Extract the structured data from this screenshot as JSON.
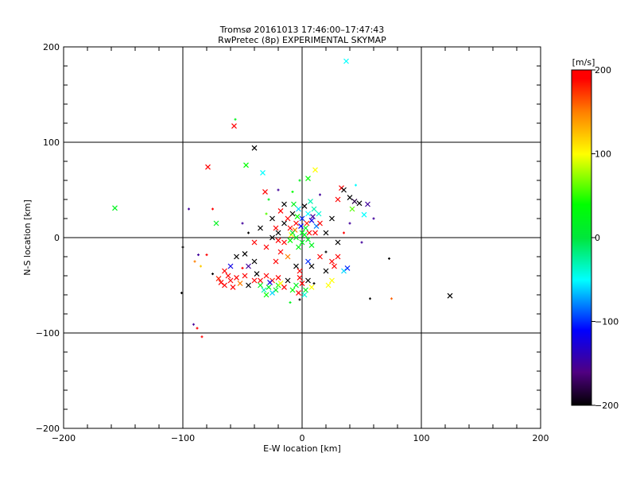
{
  "chart_data": {
    "type": "scatter",
    "title": "Tromsø 20161013 17:46:00–17:47:43",
    "subtitle": "RwPretec (8p) EXPERIMENTAL SKYMAP",
    "xlabel": "E-W location [km]",
    "ylabel": "N-S location [km]",
    "xlim": [
      -200,
      200
    ],
    "ylim": [
      -200,
      200
    ],
    "xticks": [
      "−200",
      "−100",
      "0",
      "100",
      "200"
    ],
    "yticks": [
      "−200",
      "−100",
      "0",
      "100",
      "200"
    ],
    "grid": true,
    "colorbar": {
      "label": "[m/s]",
      "range": [
        -200,
        200
      ],
      "ticks": [
        "200",
        "100",
        "0",
        "−100",
        "−200"
      ]
    },
    "point_format": [
      "x_km",
      "y_km",
      "velocity_m_s",
      "marker(1=cross,0=plus)"
    ],
    "points": [
      [
        37,
        185,
        -50,
        1
      ],
      [
        -57,
        117,
        200,
        1
      ],
      [
        -56,
        124,
        20,
        0
      ],
      [
        -79,
        74,
        200,
        1
      ],
      [
        -47,
        76,
        40,
        1
      ],
      [
        -40,
        94,
        -200,
        1
      ],
      [
        -157,
        31,
        20,
        1
      ],
      [
        -72,
        15,
        20,
        1
      ],
      [
        124,
        -61,
        -200,
        1
      ],
      [
        75,
        -64,
        160,
        0
      ],
      [
        57,
        -64,
        -200,
        0
      ],
      [
        -101,
        -58,
        -200,
        0
      ],
      [
        -91,
        -91,
        -150,
        0
      ],
      [
        -88,
        -95,
        200,
        0
      ],
      [
        -84,
        -104,
        200,
        0
      ],
      [
        73,
        -22,
        -200,
        0
      ],
      [
        -33,
        68,
        -50,
        1
      ],
      [
        -31,
        48,
        200,
        1
      ],
      [
        11,
        71,
        100,
        1
      ],
      [
        5,
        62,
        40,
        1
      ],
      [
        52,
        24,
        -50,
        1
      ],
      [
        33,
        52,
        200,
        1
      ],
      [
        35,
        50,
        -200,
        1
      ],
      [
        40,
        42,
        -200,
        1
      ],
      [
        44,
        38,
        -180,
        1
      ],
      [
        48,
        36,
        -200,
        1
      ],
      [
        55,
        35,
        -150,
        1
      ],
      [
        30,
        40,
        200,
        1
      ],
      [
        42,
        30,
        60,
        1
      ],
      [
        -60,
        -45,
        200,
        1
      ],
      [
        -65,
        -50,
        200,
        1
      ],
      [
        -55,
        -42,
        200,
        1
      ],
      [
        -62,
        -40,
        200,
        1
      ],
      [
        -68,
        -47,
        200,
        1
      ],
      [
        -52,
        -48,
        150,
        1
      ],
      [
        -70,
        -43,
        180,
        1
      ],
      [
        -58,
        -52,
        200,
        1
      ],
      [
        -75,
        -38,
        -200,
        0
      ],
      [
        -80,
        -18,
        200,
        0
      ],
      [
        -100,
        -10,
        -200,
        0
      ],
      [
        -87,
        -18,
        -150,
        0
      ],
      [
        -35,
        -45,
        200,
        1
      ],
      [
        -30,
        -40,
        200,
        1
      ],
      [
        -25,
        -45,
        180,
        1
      ],
      [
        -20,
        -50,
        40,
        1
      ],
      [
        -28,
        -52,
        20,
        1
      ],
      [
        -32,
        -55,
        -30,
        1
      ],
      [
        -22,
        -55,
        20,
        1
      ],
      [
        -18,
        -48,
        100,
        1
      ],
      [
        -25,
        -58,
        -60,
        1
      ],
      [
        -15,
        -52,
        200,
        1
      ],
      [
        -35,
        -50,
        20,
        1
      ],
      [
        -27,
        -47,
        -120,
        1
      ],
      [
        -20,
        -42,
        200,
        1
      ],
      [
        -30,
        -60,
        40,
        1
      ],
      [
        -12,
        -45,
        -200,
        1
      ],
      [
        -5,
        -50,
        20,
        1
      ],
      [
        0,
        -48,
        200,
        1
      ],
      [
        3,
        -55,
        20,
        1
      ],
      [
        -3,
        -58,
        200,
        1
      ],
      [
        5,
        -45,
        -200,
        1
      ],
      [
        -8,
        -55,
        40,
        1
      ],
      [
        2,
        -60,
        -40,
        1
      ],
      [
        -2,
        -42,
        200,
        1
      ],
      [
        8,
        -52,
        100,
        1
      ],
      [
        10,
        -48,
        -200,
        0
      ],
      [
        -5,
        15,
        200,
        1
      ],
      [
        0,
        20,
        -100,
        1
      ],
      [
        5,
        25,
        -50,
        1
      ],
      [
        -10,
        10,
        200,
        1
      ],
      [
        -8,
        25,
        -200,
        1
      ],
      [
        3,
        10,
        20,
        1
      ],
      [
        8,
        18,
        -120,
        1
      ],
      [
        -3,
        30,
        -60,
        1
      ],
      [
        10,
        30,
        -30,
        1
      ],
      [
        -12,
        20,
        200,
        1
      ],
      [
        0,
        5,
        20,
        1
      ],
      [
        6,
        5,
        200,
        1
      ],
      [
        -15,
        15,
        -200,
        1
      ],
      [
        12,
        12,
        -80,
        1
      ],
      [
        -6,
        8,
        150,
        1
      ],
      [
        2,
        33,
        -200,
        1
      ],
      [
        -4,
        22,
        40,
        1
      ],
      [
        9,
        22,
        -150,
        1
      ],
      [
        -18,
        28,
        200,
        1
      ],
      [
        -20,
        5,
        -200,
        1
      ],
      [
        4,
        15,
        180,
        1
      ],
      [
        -7,
        35,
        20,
        1
      ],
      [
        14,
        25,
        -40,
        1
      ],
      [
        -1,
        12,
        -110,
        1
      ],
      [
        11,
        5,
        200,
        1
      ],
      [
        -25,
        20,
        -200,
        1
      ],
      [
        -22,
        10,
        200,
        1
      ],
      [
        7,
        38,
        -30,
        1
      ],
      [
        -9,
        3,
        100,
        1
      ],
      [
        15,
        15,
        200,
        1
      ],
      [
        -5,
        0,
        20,
        1
      ],
      [
        0,
        -5,
        20,
        1
      ],
      [
        5,
        -2,
        20,
        1
      ],
      [
        -10,
        -3,
        40,
        1
      ],
      [
        2,
        3,
        20,
        1
      ],
      [
        -3,
        -10,
        30,
        1
      ],
      [
        -8,
        5,
        0,
        1
      ],
      [
        8,
        -8,
        20,
        1
      ],
      [
        -15,
        -5,
        200,
        1
      ],
      [
        -20,
        -3,
        200,
        1
      ],
      [
        -25,
        0,
        -200,
        1
      ],
      [
        -30,
        -10,
        200,
        1
      ],
      [
        -18,
        -15,
        200,
        1
      ],
      [
        -12,
        -20,
        150,
        1
      ],
      [
        -22,
        -25,
        200,
        1
      ],
      [
        15,
        -20,
        200,
        1
      ],
      [
        20,
        -15,
        -200,
        0
      ],
      [
        25,
        -25,
        200,
        1
      ],
      [
        30,
        -20,
        200,
        1
      ],
      [
        35,
        -35,
        -60,
        1
      ],
      [
        38,
        -32,
        -100,
        1
      ],
      [
        -40,
        -25,
        -200,
        1
      ],
      [
        -45,
        -30,
        -150,
        1
      ],
      [
        -38,
        -38,
        -200,
        1
      ],
      [
        -50,
        -32,
        200,
        0
      ],
      [
        -35,
        10,
        -200,
        1
      ],
      [
        -40,
        -5,
        200,
        1
      ],
      [
        -45,
        5,
        -200,
        0
      ],
      [
        -50,
        15,
        -150,
        0
      ],
      [
        -30,
        25,
        60,
        0
      ],
      [
        25,
        20,
        -200,
        1
      ],
      [
        20,
        5,
        -200,
        1
      ],
      [
        30,
        -5,
        -200,
        1
      ],
      [
        20,
        -35,
        -200,
        1
      ],
      [
        25,
        -45,
        100,
        1
      ],
      [
        27,
        -30,
        200,
        1
      ],
      [
        50,
        -5,
        -150,
        0
      ],
      [
        35,
        5,
        200,
        0
      ],
      [
        40,
        15,
        -150,
        0
      ],
      [
        -55,
        -20,
        -200,
        1
      ],
      [
        -60,
        -30,
        -120,
        1
      ],
      [
        -65,
        -35,
        200,
        1
      ],
      [
        -85,
        -30,
        120,
        0
      ],
      [
        -90,
        -25,
        150,
        0
      ],
      [
        8,
        -30,
        -200,
        1
      ],
      [
        -48,
        -17,
        -200,
        1
      ],
      [
        -15,
        35,
        -200,
        1
      ],
      [
        -28,
        40,
        20,
        0
      ],
      [
        -20,
        50,
        -150,
        0
      ],
      [
        -8,
        48,
        40,
        0
      ],
      [
        15,
        45,
        -150,
        0
      ],
      [
        -2,
        60,
        20,
        0
      ],
      [
        45,
        55,
        -50,
        0
      ],
      [
        60,
        20,
        -150,
        0
      ],
      [
        -95,
        30,
        -150,
        0
      ],
      [
        -75,
        30,
        200,
        0
      ],
      [
        -2,
        -65,
        -200,
        0
      ],
      [
        -10,
        -68,
        20,
        0
      ],
      [
        22,
        -50,
        100,
        1
      ],
      [
        -5,
        -30,
        -200,
        1
      ],
      [
        -2,
        -35,
        200,
        1
      ],
      [
        5,
        -25,
        -100,
        1
      ],
      [
        -40,
        -45,
        200,
        1
      ],
      [
        -45,
        -50,
        -200,
        1
      ],
      [
        -48,
        -40,
        200,
        1
      ]
    ]
  }
}
